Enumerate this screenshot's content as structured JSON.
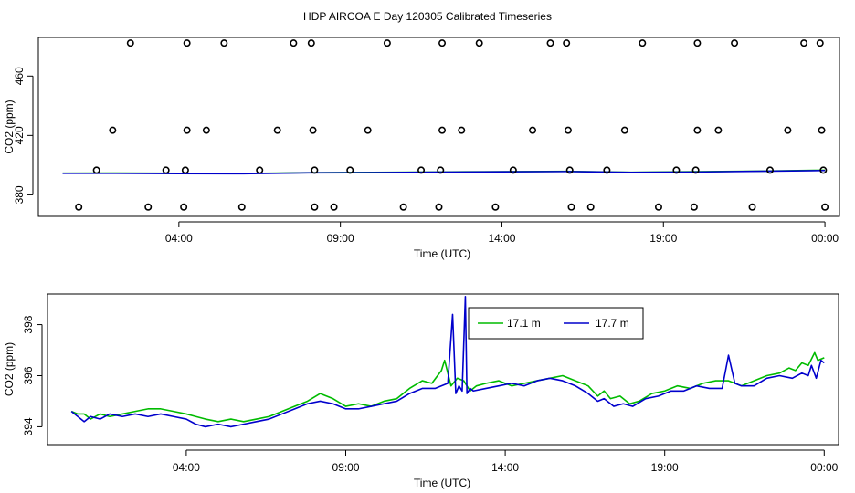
{
  "figure": {
    "title": "HDP AIRCOA E  Day 120305  Calibrated Timeseries"
  },
  "colors": {
    "series_green": "#00bb00",
    "series_blue": "#0000cc",
    "frame": "#000000",
    "points": "#000000"
  },
  "chart_data": [
    {
      "type": "scatter",
      "title": "",
      "xlabel": "Time (UTC)",
      "ylabel": "CO2 (ppm)",
      "x_unit": "hours since 00:00 UTC",
      "xlim": [
        -0.35,
        24.45
      ],
      "ylim": [
        365.5,
        486
      ],
      "x_ticks": [
        4,
        9,
        14,
        19,
        24
      ],
      "x_tick_labels": [
        "04:00",
        "09:00",
        "14:00",
        "19:00",
        "00:00"
      ],
      "y_ticks": [
        380,
        420,
        460
      ],
      "y_tick_labels": [
        "380",
        "420",
        "460"
      ],
      "grid": false,
      "points": [
        {
          "x": 0.9,
          "y": 371.8
        },
        {
          "x": 1.45,
          "y": 396.6
        },
        {
          "x": 1.95,
          "y": 423.5
        },
        {
          "x": 2.5,
          "y": 482.2
        },
        {
          "x": 3.05,
          "y": 371.8
        },
        {
          "x": 3.6,
          "y": 396.6
        },
        {
          "x": 4.15,
          "y": 371.8
        },
        {
          "x": 4.2,
          "y": 396.6
        },
        {
          "x": 4.25,
          "y": 423.5
        },
        {
          "x": 4.25,
          "y": 482.2
        },
        {
          "x": 4.85,
          "y": 423.5
        },
        {
          "x": 5.4,
          "y": 482.2
        },
        {
          "x": 5.95,
          "y": 371.8
        },
        {
          "x": 6.5,
          "y": 396.6
        },
        {
          "x": 7.05,
          "y": 423.5
        },
        {
          "x": 7.55,
          "y": 482.2
        },
        {
          "x": 8.1,
          "y": 482.2
        },
        {
          "x": 8.15,
          "y": 423.5
        },
        {
          "x": 8.2,
          "y": 396.6
        },
        {
          "x": 8.2,
          "y": 371.8
        },
        {
          "x": 8.8,
          "y": 371.8
        },
        {
          "x": 9.3,
          "y": 396.6
        },
        {
          "x": 9.85,
          "y": 423.5
        },
        {
          "x": 10.45,
          "y": 482.2
        },
        {
          "x": 10.95,
          "y": 371.8
        },
        {
          "x": 11.5,
          "y": 396.6
        },
        {
          "x": 12.05,
          "y": 371.8
        },
        {
          "x": 12.1,
          "y": 396.6
        },
        {
          "x": 12.15,
          "y": 423.5
        },
        {
          "x": 12.15,
          "y": 482.2
        },
        {
          "x": 12.75,
          "y": 423.5
        },
        {
          "x": 13.3,
          "y": 482.2
        },
        {
          "x": 13.8,
          "y": 371.8
        },
        {
          "x": 14.35,
          "y": 396.6
        },
        {
          "x": 14.95,
          "y": 423.5
        },
        {
          "x": 15.5,
          "y": 482.2
        },
        {
          "x": 16.0,
          "y": 482.2
        },
        {
          "x": 16.05,
          "y": 423.5
        },
        {
          "x": 16.1,
          "y": 396.6
        },
        {
          "x": 16.15,
          "y": 371.8
        },
        {
          "x": 16.75,
          "y": 371.8
        },
        {
          "x": 17.25,
          "y": 396.6
        },
        {
          "x": 17.8,
          "y": 423.5
        },
        {
          "x": 18.35,
          "y": 482.2
        },
        {
          "x": 18.85,
          "y": 371.8
        },
        {
          "x": 19.4,
          "y": 396.6
        },
        {
          "x": 19.95,
          "y": 371.8
        },
        {
          "x": 20.0,
          "y": 396.6
        },
        {
          "x": 20.05,
          "y": 423.5
        },
        {
          "x": 20.05,
          "y": 482.2
        },
        {
          "x": 20.7,
          "y": 423.5
        },
        {
          "x": 21.2,
          "y": 482.2
        },
        {
          "x": 21.75,
          "y": 371.8
        },
        {
          "x": 22.3,
          "y": 396.6
        },
        {
          "x": 22.85,
          "y": 423.5
        },
        {
          "x": 23.35,
          "y": 482.2
        },
        {
          "x": 23.85,
          "y": 482.2
        },
        {
          "x": 23.9,
          "y": 423.5
        },
        {
          "x": 23.95,
          "y": 396.6
        },
        {
          "x": 24.0,
          "y": 371.8
        }
      ],
      "series": [
        {
          "color": "#00bb00",
          "x": [
            0.4,
            2,
            4,
            6,
            8,
            10,
            12,
            14,
            16,
            18,
            20,
            22,
            24
          ],
          "values": [
            394.6,
            394.7,
            394.5,
            394.4,
            394.9,
            395.1,
            395.4,
            395.6,
            395.8,
            395.2,
            395.6,
            396.0,
            396.6
          ]
        },
        {
          "color": "#0000cc",
          "x": [
            0.4,
            2,
            4,
            6,
            8,
            10,
            12,
            14,
            16,
            18,
            20,
            22,
            24
          ],
          "values": [
            394.5,
            394.5,
            394.3,
            394.2,
            394.8,
            395.0,
            395.3,
            395.5,
            395.7,
            395.1,
            395.4,
            395.9,
            396.4
          ]
        }
      ]
    },
    {
      "type": "line",
      "title": "",
      "xlabel": "Time (UTC)",
      "ylabel": "CO2 (ppm)",
      "x_unit": "hours since 00:00 UTC",
      "xlim": [
        -0.35,
        24.45
      ],
      "ylim": [
        393.3,
        399.2
      ],
      "x_ticks": [
        4,
        9,
        14,
        19,
        24
      ],
      "x_tick_labels": [
        "04:00",
        "09:00",
        "14:00",
        "19:00",
        "00:00"
      ],
      "y_ticks": [
        394,
        396,
        398
      ],
      "y_tick_labels": [
        "394",
        "396",
        "398"
      ],
      "grid": false,
      "legend": {
        "position": "top-center",
        "entries": [
          "17.1 m",
          "17.7 m"
        ]
      },
      "series": [
        {
          "name": "17.1 m",
          "color": "#00bb00",
          "x": [
            0.4,
            0.6,
            0.8,
            1.0,
            1.3,
            1.6,
            2.0,
            2.4,
            2.8,
            3.2,
            3.6,
            4.0,
            4.3,
            4.6,
            5.0,
            5.4,
            5.8,
            6.2,
            6.6,
            7.0,
            7.4,
            7.8,
            8.2,
            8.6,
            9.0,
            9.4,
            9.8,
            10.2,
            10.6,
            11.0,
            11.4,
            11.7,
            12.0,
            12.1,
            12.3,
            12.5,
            12.7,
            12.9,
            13.1,
            13.4,
            13.8,
            14.2,
            14.6,
            15.0,
            15.4,
            15.8,
            16.2,
            16.6,
            16.9,
            17.1,
            17.3,
            17.6,
            17.9,
            18.2,
            18.6,
            19.0,
            19.4,
            19.8,
            20.2,
            20.6,
            21.0,
            21.4,
            21.8,
            22.2,
            22.6,
            22.9,
            23.1,
            23.3,
            23.5,
            23.7,
            23.8,
            24.0
          ],
          "values": [
            394.6,
            394.5,
            394.5,
            394.3,
            394.5,
            394.4,
            394.5,
            394.6,
            394.7,
            394.7,
            394.6,
            394.5,
            394.4,
            394.3,
            394.2,
            394.3,
            394.2,
            394.3,
            394.4,
            394.6,
            394.8,
            395.0,
            395.3,
            395.1,
            394.8,
            394.9,
            394.8,
            395.0,
            395.1,
            395.5,
            395.8,
            395.7,
            396.2,
            396.6,
            395.6,
            395.9,
            395.8,
            395.4,
            395.6,
            395.7,
            395.8,
            395.6,
            395.7,
            395.8,
            395.9,
            396.0,
            395.8,
            395.6,
            395.2,
            395.4,
            395.1,
            395.2,
            394.9,
            395.0,
            395.3,
            395.4,
            395.6,
            395.5,
            395.7,
            395.8,
            395.8,
            395.6,
            395.8,
            396.0,
            396.1,
            396.3,
            396.2,
            396.5,
            396.4,
            396.9,
            396.6,
            396.7
          ]
        },
        {
          "name": "17.7 m",
          "color": "#0000cc",
          "x": [
            0.4,
            0.6,
            0.8,
            1.0,
            1.3,
            1.6,
            2.0,
            2.4,
            2.8,
            3.2,
            3.6,
            4.0,
            4.3,
            4.6,
            5.0,
            5.4,
            5.8,
            6.2,
            6.6,
            7.0,
            7.4,
            7.8,
            8.2,
            8.6,
            9.0,
            9.4,
            9.8,
            10.2,
            10.6,
            11.0,
            11.4,
            11.8,
            12.2,
            12.35,
            12.45,
            12.55,
            12.65,
            12.75,
            12.8,
            12.9,
            13.0,
            13.4,
            13.8,
            14.2,
            14.6,
            15.0,
            15.4,
            15.8,
            16.2,
            16.6,
            16.9,
            17.1,
            17.4,
            17.7,
            18.0,
            18.4,
            18.8,
            19.2,
            19.6,
            20.0,
            20.4,
            20.8,
            21.0,
            21.2,
            21.4,
            21.8,
            22.2,
            22.6,
            23.0,
            23.3,
            23.5,
            23.6,
            23.75,
            23.9,
            24.0
          ],
          "values": [
            394.6,
            394.4,
            394.2,
            394.4,
            394.3,
            394.5,
            394.4,
            394.5,
            394.4,
            394.5,
            394.4,
            394.3,
            394.1,
            394.0,
            394.1,
            394.0,
            394.1,
            394.2,
            394.3,
            394.5,
            394.7,
            394.9,
            395.0,
            394.9,
            394.7,
            394.7,
            394.8,
            394.9,
            395.0,
            395.3,
            395.5,
            395.5,
            395.7,
            398.4,
            395.3,
            395.6,
            395.4,
            399.1,
            395.3,
            395.5,
            395.4,
            395.5,
            395.6,
            395.7,
            395.6,
            395.8,
            395.9,
            395.8,
            395.6,
            395.3,
            395.0,
            395.1,
            394.8,
            394.9,
            394.8,
            395.1,
            395.2,
            395.4,
            395.4,
            395.6,
            395.5,
            395.5,
            396.8,
            395.7,
            395.6,
            395.6,
            395.9,
            396.0,
            395.9,
            396.1,
            396.0,
            396.4,
            395.9,
            396.6,
            396.5
          ]
        }
      ]
    }
  ]
}
